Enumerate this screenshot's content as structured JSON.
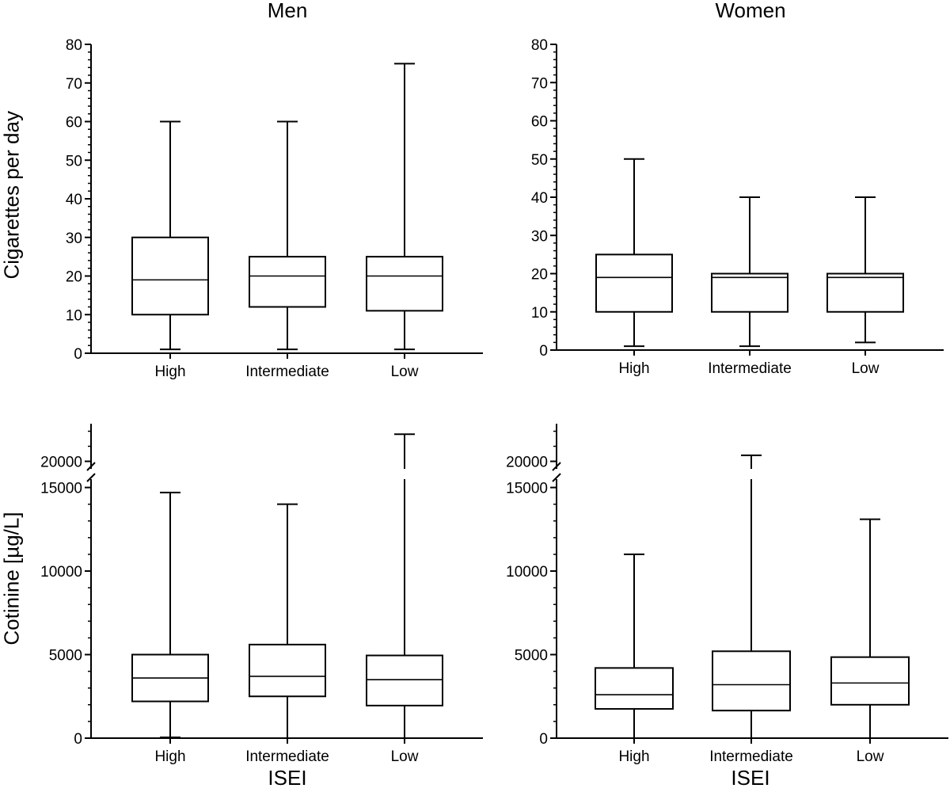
{
  "column_titles": [
    "Men",
    "Women"
  ],
  "row_ylabels": [
    "Cigarettes per day",
    "Cotinine [µg/L]"
  ],
  "xlabel_bottom": "ISEI",
  "chart_data": [
    {
      "type": "boxplot",
      "title": "Men",
      "ylabel": "Cigarettes per day",
      "xlabel": "",
      "categories": [
        "High",
        "Intermediate",
        "Low"
      ],
      "ylim": [
        0,
        80
      ],
      "yticks": [
        0,
        10,
        20,
        30,
        40,
        50,
        60,
        70,
        80
      ],
      "boxes": [
        {
          "category": "High",
          "min": 1,
          "q1": 10,
          "median": 19,
          "q3": 30,
          "max": 60
        },
        {
          "category": "Intermediate",
          "min": 1,
          "q1": 12,
          "median": 20,
          "q3": 25,
          "max": 60
        },
        {
          "category": "Low",
          "min": 1,
          "q1": 11,
          "median": 20,
          "q3": 25,
          "max": 75
        }
      ]
    },
    {
      "type": "boxplot",
      "title": "Women",
      "ylabel": "",
      "xlabel": "",
      "categories": [
        "High",
        "Intermediate",
        "Low"
      ],
      "ylim": [
        0,
        80
      ],
      "yticks": [
        0,
        10,
        20,
        30,
        40,
        50,
        60,
        70,
        80
      ],
      "boxes": [
        {
          "category": "High",
          "min": 1,
          "q1": 10,
          "median": 19,
          "q3": 25,
          "max": 50
        },
        {
          "category": "Intermediate",
          "min": 1,
          "q1": 10,
          "median": 19,
          "q3": 20,
          "max": 40
        },
        {
          "category": "Low",
          "min": 2,
          "q1": 10,
          "median": 19,
          "q3": 20,
          "max": 40
        }
      ]
    },
    {
      "type": "boxplot",
      "title": "",
      "ylabel": "Cotinine [µg/L]",
      "xlabel": "ISEI",
      "categories": [
        "High",
        "Intermediate",
        "Low"
      ],
      "y_axis_break": [
        15500,
        19500
      ],
      "ylim": [
        0,
        22500
      ],
      "yticks": [
        0,
        5000,
        10000,
        15000,
        20000
      ],
      "boxes": [
        {
          "category": "High",
          "min": 50,
          "q1": 2200,
          "median": 3600,
          "q3": 5000,
          "max": 14700
        },
        {
          "category": "Intermediate",
          "min": 0,
          "q1": 2500,
          "median": 3700,
          "q3": 5600,
          "max": 14000
        },
        {
          "category": "Low",
          "min": 0,
          "q1": 1950,
          "median": 3500,
          "q3": 4950,
          "max": 21800
        }
      ]
    },
    {
      "type": "boxplot",
      "title": "",
      "ylabel": "",
      "xlabel": "ISEI",
      "categories": [
        "High",
        "Intermediate",
        "Low"
      ],
      "y_axis_break": [
        15500,
        19500
      ],
      "ylim": [
        0,
        22500
      ],
      "yticks": [
        0,
        5000,
        10000,
        15000,
        20000
      ],
      "boxes": [
        {
          "category": "High",
          "min": 0,
          "q1": 1750,
          "median": 2600,
          "q3": 4200,
          "max": 11000
        },
        {
          "category": "Intermediate",
          "min": 0,
          "q1": 1650,
          "median": 3200,
          "q3": 5200,
          "max": 20400
        },
        {
          "category": "Low",
          "min": 0,
          "q1": 2000,
          "median": 3300,
          "q3": 4850,
          "max": 13100
        }
      ]
    }
  ]
}
